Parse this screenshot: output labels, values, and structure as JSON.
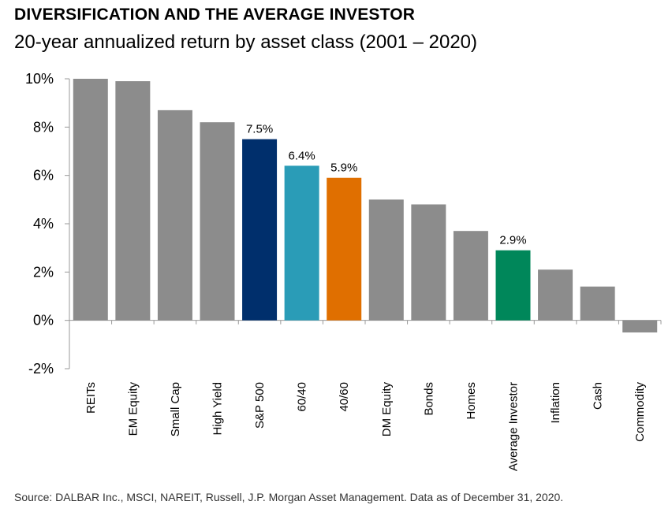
{
  "header": {
    "title": "DIVERSIFICATION AND THE AVERAGE INVESTOR",
    "subtitle": "20-year annualized return by asset class (2001 – 2020)"
  },
  "footer": {
    "source": "Source: DALBAR Inc., MSCI, NAREIT, Russell, J.P. Morgan Asset Management. Data as of December 31, 2020."
  },
  "chart_data": {
    "type": "bar",
    "title": "DIVERSIFICATION AND THE AVERAGE INVESTOR",
    "subtitle": "20-year annualized return by asset class (2001 – 2020)",
    "xlabel": "",
    "ylabel": "",
    "ylim": [
      -2,
      10
    ],
    "yticks": [
      -2,
      0,
      2,
      4,
      6,
      8,
      10
    ],
    "ytick_labels": [
      "-2%",
      "0%",
      "2%",
      "4%",
      "6%",
      "8%",
      "10%"
    ],
    "grid": false,
    "categories": [
      "REITs",
      "EM Equity",
      "Small Cap",
      "High Yield",
      "S&P 500",
      "60/40",
      "40/60",
      "DM Equity",
      "Bonds",
      "Homes",
      "Average Investor",
      "Inflation",
      "Cash",
      "Commodity"
    ],
    "values": [
      10.0,
      9.9,
      8.7,
      8.2,
      7.5,
      6.4,
      5.9,
      5.0,
      4.8,
      3.7,
      2.9,
      2.1,
      1.4,
      -0.5
    ],
    "colors": [
      "#8c8c8c",
      "#8c8c8c",
      "#8c8c8c",
      "#8c8c8c",
      "#002f6c",
      "#2a9cb7",
      "#e06f00",
      "#8c8c8c",
      "#8c8c8c",
      "#8c8c8c",
      "#00875a",
      "#8c8c8c",
      "#8c8c8c",
      "#8c8c8c"
    ],
    "data_labels": [
      "",
      "",
      "",
      "",
      "7.5%",
      "6.4%",
      "5.9%",
      "",
      "",
      "",
      "2.9%",
      "",
      "",
      ""
    ]
  }
}
